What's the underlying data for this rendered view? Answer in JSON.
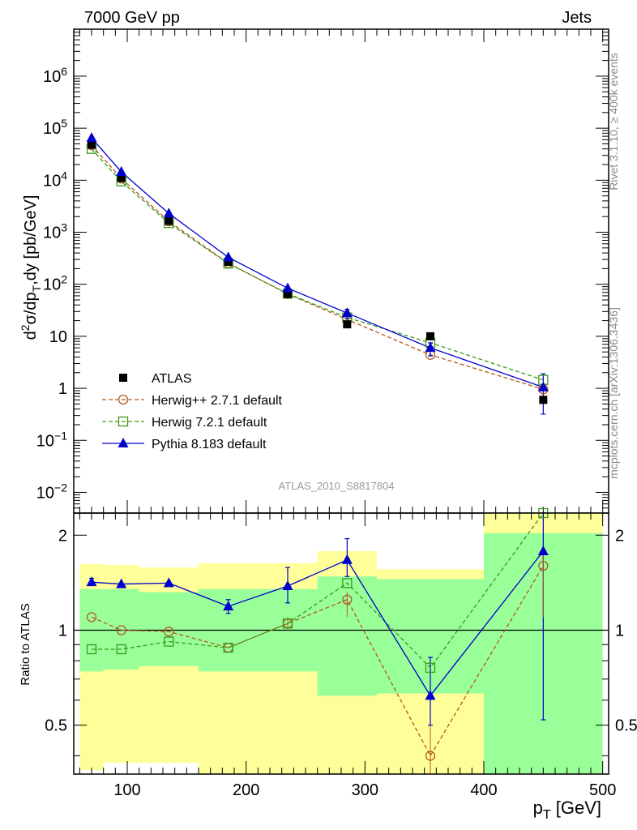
{
  "header": {
    "left": "7000 GeV pp",
    "right": "Jets"
  },
  "side_text": {
    "top": "Rivet 3.1.10, ≥ 400k events",
    "bottom": "mcplots.cern.ch [arXiv:1306.3436]"
  },
  "watermark": "ATLAS_2010_S8817804",
  "colors": {
    "atlas": "#000000",
    "herwigpp": "#b35a1f",
    "herwig7": "#3a9a1a",
    "pythia": "#0000cc",
    "band_outer": "#ffff99",
    "band_inner": "#99ff99"
  },
  "chart_data": [
    {
      "type": "scatter",
      "panel": "main",
      "ylabel": "d²σ/dp_T,dy [pb/GeV]",
      "yscale": "log",
      "ylim": [
        0.004,
        8000000
      ],
      "xlim": [
        55,
        505
      ],
      "ytick_labels": [
        "10^-2",
        "10^-1",
        "1",
        "10",
        "10^2",
        "10^3",
        "10^4",
        "10^5",
        "10^6"
      ],
      "legend": [
        "ATLAS",
        "Herwig++ 2.7.1 default",
        "Herwig 7.2.1 default",
        "Pythia 8.183 default"
      ],
      "x": [
        70,
        95,
        135,
        185,
        235,
        285,
        355,
        450
      ],
      "series": [
        {
          "name": "ATLAS",
          "values": [
            48000,
            11000,
            1650,
            270,
            65,
            17,
            10,
            0.6
          ]
        },
        {
          "name": "Herwig++ 2.7.1 default",
          "values": [
            47000,
            10800,
            1620,
            255,
            65,
            21,
            4.4,
            0.96
          ]
        },
        {
          "name": "Herwig 7.2.1 default",
          "values": [
            40000,
            9500,
            1500,
            250,
            66,
            23,
            7.5,
            1.45
          ]
        },
        {
          "name": "Pythia 8.183 default",
          "values": [
            65000,
            14500,
            2300,
            330,
            84,
            28,
            6,
            1.05
          ]
        }
      ]
    },
    {
      "type": "line",
      "panel": "ratio",
      "ylabel": "Ratio to ATLAS",
      "yscale": "log",
      "ylim": [
        0.35,
        2.35
      ],
      "xlim": [
        55,
        505
      ],
      "xlabel": "p_T [GeV]",
      "xtick_labels": [
        "100",
        "200",
        "300",
        "400",
        "500"
      ],
      "ytick_labels": [
        "0.5",
        "1",
        "2"
      ],
      "bins": [
        [
          60,
          80
        ],
        [
          80,
          110
        ],
        [
          110,
          160
        ],
        [
          160,
          210
        ],
        [
          210,
          260
        ],
        [
          260,
          310
        ],
        [
          310,
          400
        ],
        [
          400,
          500
        ]
      ],
      "band_outer": [
        [
          0.36,
          1.62
        ],
        [
          0.38,
          1.61
        ],
        [
          0.38,
          1.58
        ],
        [
          0.35,
          1.63
        ],
        [
          0.35,
          1.63
        ],
        [
          0.35,
          1.78
        ],
        [
          0.35,
          1.56
        ],
        [
          0.35,
          2.35
        ]
      ],
      "band_inner": [
        [
          0.74,
          1.35
        ],
        [
          0.75,
          1.35
        ],
        [
          0.77,
          1.32
        ],
        [
          0.74,
          1.35
        ],
        [
          0.74,
          1.35
        ],
        [
          0.62,
          1.48
        ],
        [
          0.63,
          1.45
        ],
        [
          0.35,
          2.03
        ]
      ],
      "x": [
        70,
        95,
        135,
        185,
        235,
        285,
        355,
        450
      ],
      "series": [
        {
          "name": "Herwig++ 2.7.1 default",
          "values": [
            1.1,
            1.0,
            0.99,
            0.88,
            1.05,
            1.25,
            0.4,
            1.6
          ]
        },
        {
          "name": "Herwig 7.2.1 default",
          "values": [
            0.87,
            0.87,
            0.92,
            0.88,
            1.05,
            1.41,
            0.76,
            2.35
          ]
        },
        {
          "name": "Pythia 8.183 default",
          "values": [
            1.42,
            1.4,
            1.41,
            1.19,
            1.38,
            1.67,
            0.62,
            1.78
          ]
        }
      ]
    }
  ]
}
